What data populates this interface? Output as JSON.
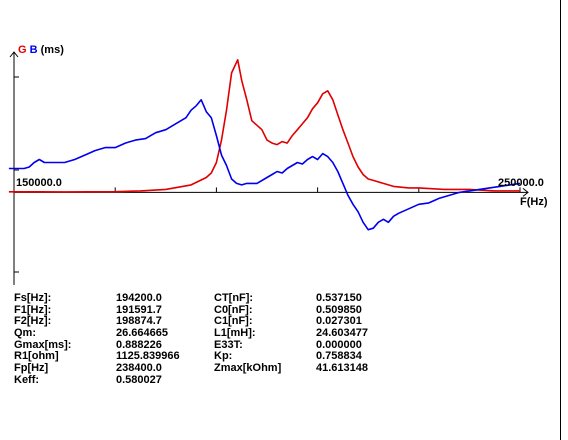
{
  "chart_data": {
    "type": "line",
    "legend": {
      "g_label": "G",
      "b_label": "B",
      "unit": "(ms)"
    },
    "xlabel": "F(Hz)",
    "x_tick_labels": [
      "150000.0",
      "250000.0"
    ],
    "xlim": [
      150000,
      250000
    ],
    "series": [
      {
        "name": "G",
        "color": "#e00000",
        "x": [
          149000,
          155000,
          160000,
          170000,
          175000,
          180000,
          185000,
          188000,
          189000,
          190000,
          191000,
          192000,
          193000,
          194200,
          195000,
          196000,
          197000,
          198000,
          199000,
          200000,
          201000,
          202000,
          203000,
          204000,
          205000,
          206000,
          207000,
          208000,
          209000,
          210000,
          211000,
          212000,
          213000,
          214000,
          215000,
          216000,
          217000,
          218000,
          219000,
          220000,
          221000,
          222000,
          223000,
          225000,
          228000,
          230000,
          235000,
          240000,
          245000,
          248000,
          250000
        ],
        "y": [
          0.004,
          0.004,
          0.003,
          0.005,
          0.01,
          0.02,
          0.05,
          0.1,
          0.13,
          0.2,
          0.35,
          0.55,
          0.8,
          0.888,
          0.75,
          0.62,
          0.48,
          0.45,
          0.42,
          0.35,
          0.33,
          0.32,
          0.34,
          0.33,
          0.38,
          0.42,
          0.46,
          0.5,
          0.56,
          0.6,
          0.66,
          0.68,
          0.62,
          0.52,
          0.42,
          0.33,
          0.24,
          0.17,
          0.12,
          0.09,
          0.08,
          0.07,
          0.06,
          0.04,
          0.03,
          0.03,
          0.02,
          0.02,
          0.01,
          0.01,
          0.01
        ]
      },
      {
        "name": "B",
        "color": "#0000ee",
        "x": [
          149000,
          151000,
          152000,
          153000,
          154000,
          155000,
          156000,
          158000,
          160000,
          162000,
          164000,
          166000,
          168000,
          170000,
          172000,
          174000,
          176000,
          178000,
          180000,
          182000,
          184000,
          185000,
          186000,
          187000,
          188000,
          189000,
          190000,
          191000,
          192000,
          193000,
          194000,
          195000,
          196000,
          198000,
          200000,
          201000,
          202000,
          203000,
          204000,
          205000,
          206000,
          207000,
          208000,
          209000,
          210000,
          211000,
          212000,
          213000,
          214000,
          215000,
          216000,
          217000,
          218000,
          219000,
          220000,
          221000,
          222000,
          223000,
          224000,
          225000,
          226000,
          228000,
          230000,
          232000,
          234000,
          236000,
          238000,
          240000,
          242000,
          244000,
          246000,
          248000,
          250000
        ],
        "y": [
          0.16,
          0.16,
          0.16,
          0.17,
          0.2,
          0.22,
          0.2,
          0.2,
          0.2,
          0.22,
          0.25,
          0.28,
          0.3,
          0.3,
          0.33,
          0.35,
          0.36,
          0.4,
          0.42,
          0.46,
          0.5,
          0.55,
          0.58,
          0.62,
          0.54,
          0.5,
          0.38,
          0.25,
          0.18,
          0.09,
          0.06,
          0.05,
          0.06,
          0.06,
          0.1,
          0.12,
          0.14,
          0.13,
          0.16,
          0.18,
          0.2,
          0.19,
          0.22,
          0.24,
          0.22,
          0.26,
          0.24,
          0.2,
          0.14,
          0.06,
          -0.02,
          -0.08,
          -0.13,
          -0.2,
          -0.25,
          -0.24,
          -0.2,
          -0.18,
          -0.2,
          -0.16,
          -0.14,
          -0.11,
          -0.08,
          -0.07,
          -0.04,
          -0.02,
          0.0,
          0.01,
          0.02,
          0.03,
          0.04,
          0.05,
          0.06
        ]
      }
    ],
    "ylim": [
      -0.62,
      0.94
    ]
  },
  "params": {
    "labels1": [
      "Fs[Hz]:",
      "F1[Hz]:",
      "F2[Hz]:",
      "Qm:",
      "Gmax[ms]:",
      "R1[ohm]",
      "Fp[Hz]",
      "Keff:"
    ],
    "values1": [
      "194200.0",
      "191591.7",
      "198874.7",
      "26.664665",
      "0.888226",
      "1125.839966",
      "238400.0",
      "0.580027"
    ],
    "labels2": [
      "CT[nF]:",
      "C0[nF]:",
      "C1[nF]:",
      "L1[mH]:",
      "E33T:",
      "Kp:",
      "Zmax[kOhm]"
    ],
    "values2": [
      "0.537150",
      "0.509850",
      "0.027301",
      "24.603477",
      "0.000000",
      "0.758834",
      "41.613148"
    ]
  }
}
